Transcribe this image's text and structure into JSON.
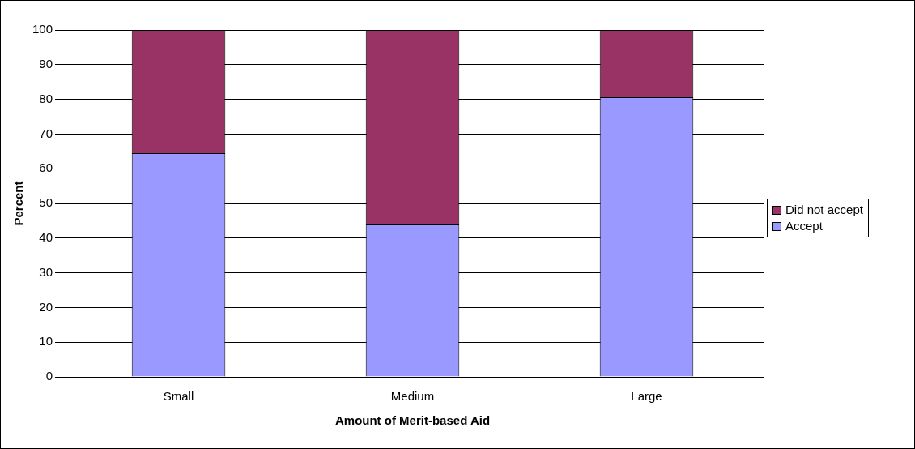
{
  "chart_data": {
    "type": "bar",
    "stacked": true,
    "xlabel": "Amount of Merit-based Aid",
    "ylabel": "Percent",
    "categories": [
      "Small",
      "Medium",
      "Large"
    ],
    "series": [
      {
        "name": "Accept",
        "color": "#9999ff",
        "values": [
          64.5,
          43.9,
          80.6
        ]
      },
      {
        "name": "Did not accept",
        "color": "#993366",
        "values": [
          35.5,
          56.1,
          19.4
        ]
      }
    ],
    "ylim": [
      0,
      100
    ],
    "yticks": [
      0,
      10,
      20,
      30,
      40,
      50,
      60,
      70,
      80,
      90,
      100
    ],
    "grid": "y",
    "legend": "right"
  }
}
